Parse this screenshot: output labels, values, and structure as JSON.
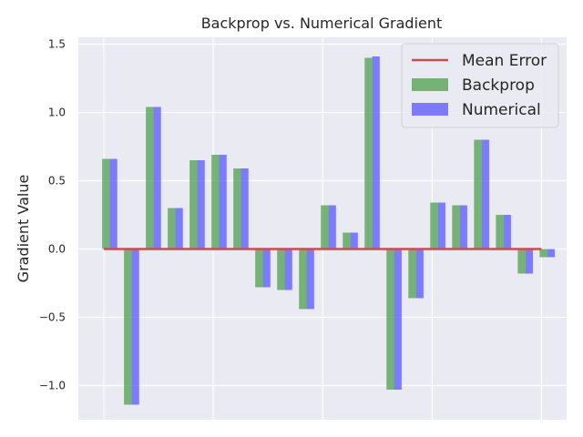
{
  "chart_data": {
    "type": "bar",
    "title": "Backprop vs. Numerical Gradient",
    "xlabel": "",
    "ylabel": "Gradient Value",
    "ylim": [
      -1.25,
      1.55
    ],
    "yticks": [
      -1.0,
      -0.5,
      0.0,
      0.5,
      1.0,
      1.5
    ],
    "ytick_labels": [
      "−1.0",
      "−0.5",
      "0.0",
      "0.5",
      "1.0",
      "1.5"
    ],
    "grid": true,
    "legend_position": "top-right",
    "x": [
      0,
      1,
      2,
      3,
      4,
      5,
      6,
      7,
      8,
      9,
      10,
      11,
      12,
      13,
      14,
      15,
      16,
      17,
      18,
      19,
      20
    ],
    "series": [
      {
        "name": "Backprop",
        "color": "#4c9f4c",
        "values": [
          0.66,
          -1.14,
          1.04,
          0.3,
          0.65,
          0.69,
          0.59,
          -0.28,
          -0.3,
          -0.44,
          0.32,
          0.12,
          1.4,
          -1.03,
          -0.36,
          0.34,
          0.32,
          0.8,
          0.25,
          -0.18,
          -0.06
        ]
      },
      {
        "name": "Numerical",
        "color": "#5555ff",
        "values": [
          0.66,
          -1.14,
          1.04,
          0.3,
          0.65,
          0.69,
          0.59,
          -0.28,
          -0.3,
          -0.44,
          0.32,
          0.12,
          1.41,
          -1.03,
          -0.36,
          0.34,
          0.32,
          0.8,
          0.25,
          -0.18,
          -0.06
        ]
      }
    ],
    "mean_error": {
      "name": "Mean Error",
      "color": "#c44e52",
      "value": 0.0,
      "x_range": [
        0,
        20
      ]
    }
  },
  "legend": {
    "mean_error_label": "Mean Error",
    "backprop_label": "Backprop",
    "numerical_label": "Numerical"
  }
}
